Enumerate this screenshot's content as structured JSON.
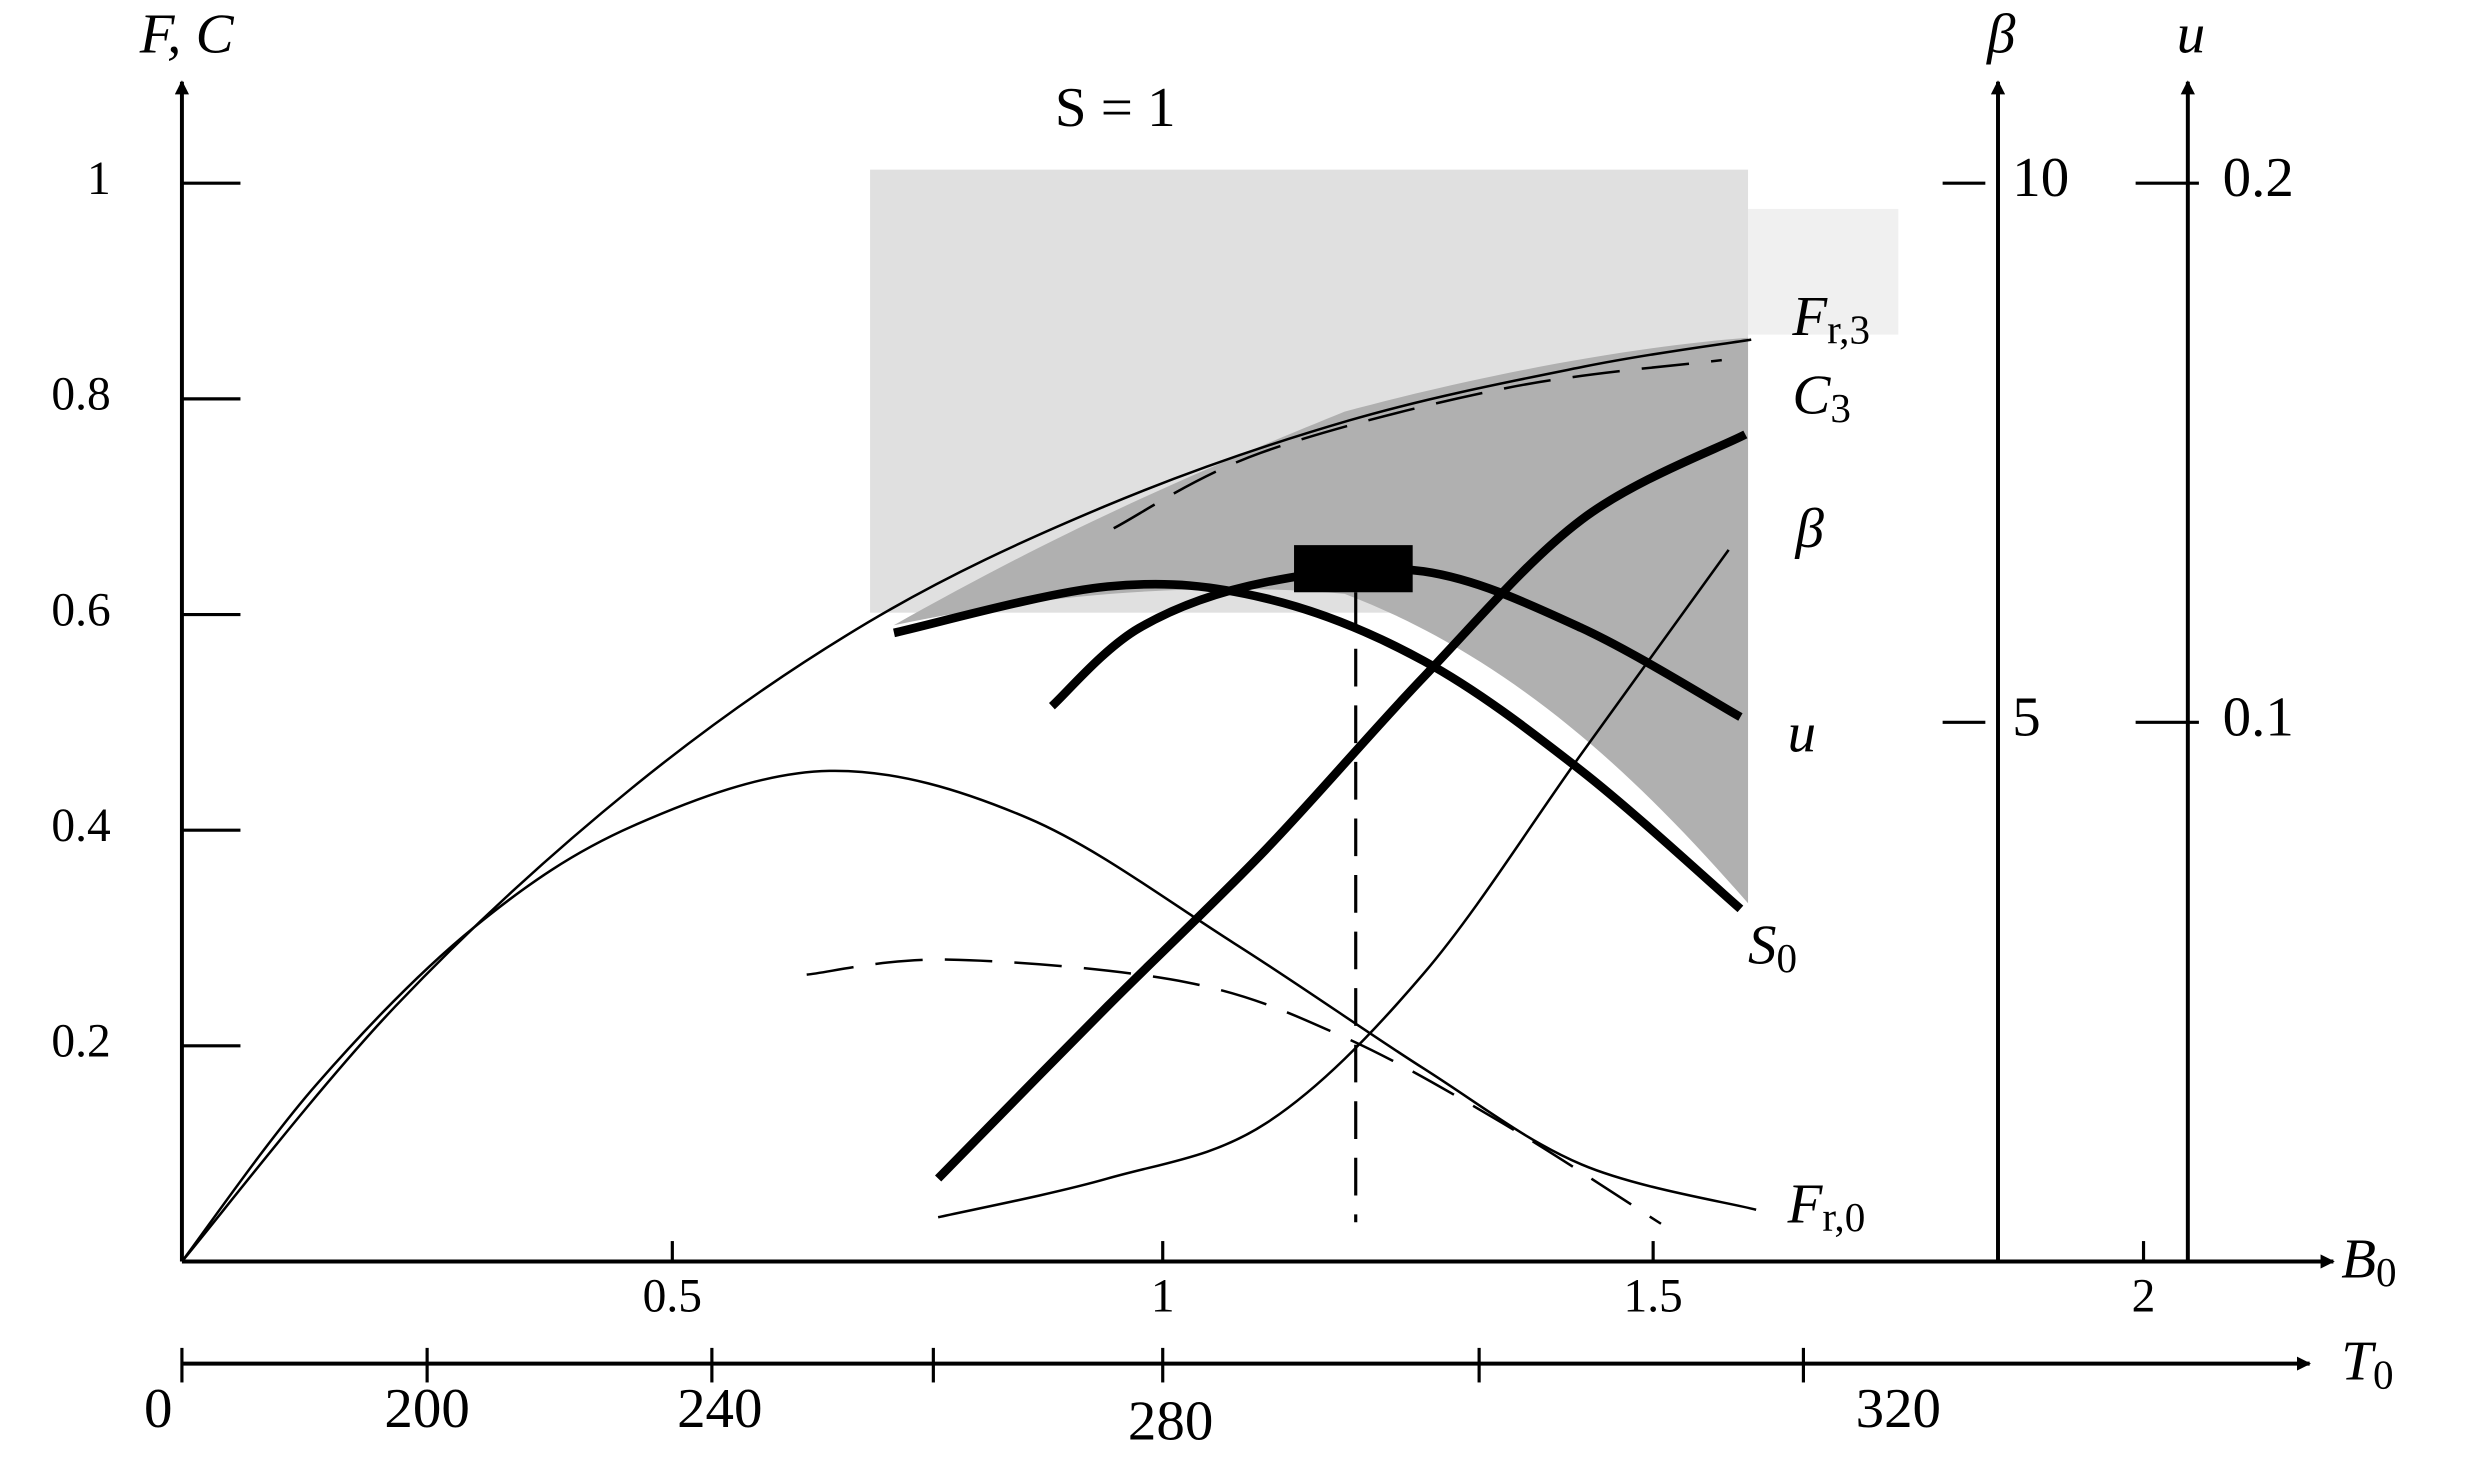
{
  "chart_data": {
    "type": "line",
    "y_label": "F, C",
    "y2_label": "β",
    "y3_label": "u",
    "x_label": {
      "text": "B",
      "sub": "0"
    },
    "t_label": {
      "text": "T",
      "sub": "0"
    },
    "t_tick_labels": [
      "0",
      "200",
      "240",
      "280",
      "320"
    ],
    "annotation": "S = 1",
    "xlim": [
      0,
      2.2
    ],
    "xticks": [
      0.5,
      1,
      1.5,
      2
    ],
    "ylim": [
      0,
      1.1
    ],
    "yticks": [
      0.2,
      0.4,
      0.6,
      0.8,
      1
    ],
    "y2lim": [
      0,
      11
    ],
    "y2ticks": [
      5,
      10
    ],
    "y3lim": [
      0,
      0.22
    ],
    "y3ticks": [
      0.1,
      0.2
    ],
    "series": [
      {
        "name": {
          "text": "F",
          "sub": "r,3"
        },
        "color": "#000",
        "style": "thin",
        "axis": "y",
        "x": [
          0,
          0.218,
          0.46,
          0.7,
          0.94,
          1.19,
          1.43,
          1.6
        ],
        "values": [
          0,
          0.237,
          0.44,
          0.593,
          0.7,
          0.78,
          0.83,
          0.855
        ]
      },
      {
        "color": "#000",
        "style": "dashed",
        "axis": "y",
        "x": [
          0.95,
          1.1,
          1.35,
          1.57
        ],
        "values": [
          0.68,
          0.75,
          0.81,
          0.836
        ]
      },
      {
        "name": {
          "text": "C",
          "sub": "3"
        },
        "color": "#000",
        "style": "thick",
        "axis": "y",
        "x": [
          0.771,
          0.944,
          1.105,
          1.266,
          1.427,
          1.594
        ],
        "values": [
          0.077,
          0.237,
          0.382,
          0.542,
          0.688,
          0.767
        ]
      },
      {
        "name": {
          "text": "β"
        },
        "color": "#000",
        "style": "thin",
        "axis": "y2",
        "x": [
          0.771,
          0.944,
          1.105,
          1.266,
          1.427,
          1.577
        ],
        "values": [
          0.41,
          0.77,
          1.28,
          2.67,
          4.71,
          6.6
        ]
      },
      {
        "name": {
          "text": "u"
        },
        "color": "#000",
        "style": "thick",
        "axis": "y3",
        "x": [
          0.887,
          0.976,
          1.105,
          1.266,
          1.427,
          1.589
        ],
        "values": [
          0.103,
          0.1175,
          0.126,
          0.128,
          0.1175,
          0.101
        ]
      },
      {
        "name": {
          "text": "S",
          "sub": "0"
        },
        "color": "#000",
        "style": "thick",
        "axis": "y",
        "x": [
          0.726,
          0.944,
          1.105,
          1.266,
          1.427,
          1.589
        ],
        "values": [
          0.583,
          0.626,
          0.615,
          0.557,
          0.455,
          0.327
        ]
      },
      {
        "name": {
          "text": "F",
          "sub": "r,0"
        },
        "color": "#000",
        "style": "thin",
        "axis": "y",
        "x": [
          0,
          0.137,
          0.298,
          0.46,
          0.66,
          0.863,
          1.073,
          1.266,
          1.427,
          1.605
        ],
        "values": [
          0,
          0.164,
          0.31,
          0.404,
          0.455,
          0.411,
          0.295,
          0.179,
          0.09,
          0.048
        ]
      },
      {
        "color": "#000",
        "style": "dashed",
        "axis": "y",
        "x": [
          0.637,
          0.782,
          1.024,
          1.185,
          1.347,
          1.508
        ],
        "values": [
          0.266,
          0.28,
          0.259,
          0.208,
          0.128,
          0.035
        ]
      }
    ]
  }
}
